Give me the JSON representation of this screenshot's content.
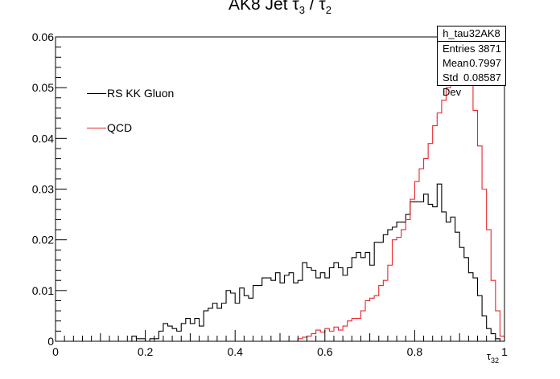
{
  "title": {
    "main": "AK8 Jet τ",
    "sub1": "3",
    "sep": " / τ",
    "sub2": "2"
  },
  "stats_box": {
    "name": "h_tau32AK8",
    "rows": [
      {
        "label": "Entries",
        "value": "3871"
      },
      {
        "label": "Mean",
        "value": "0.7997"
      },
      {
        "label": "Std Dev",
        "value": "0.08587"
      }
    ]
  },
  "colors": {
    "signal": "#000000",
    "background": "#e8262b"
  },
  "chart_data": {
    "type": "line",
    "xlabel": "τ32",
    "xlim": [
      0,
      1
    ],
    "ylim": [
      0,
      0.06
    ],
    "xticks": [
      "0",
      "0.2",
      "0.4",
      "0.6",
      "0.8",
      "1"
    ],
    "yticks": [
      "0",
      "0.01",
      "0.02",
      "0.03",
      "0.04",
      "0.05",
      "0.06"
    ],
    "bins": 100,
    "legend_position": "top-left",
    "series": [
      {
        "name": "RS KK Gluon",
        "values": [
          0,
          0,
          0,
          0,
          0,
          0,
          0,
          0,
          0,
          0,
          0,
          0,
          0,
          0,
          0,
          0,
          0,
          0.001,
          0.0005,
          0.0005,
          0,
          0.0005,
          0.0005,
          0.002,
          0.0035,
          0.003,
          0.0025,
          0.002,
          0.0035,
          0.0045,
          0.0035,
          0.0045,
          0.003,
          0.006,
          0.0065,
          0.0075,
          0.0065,
          0.0075,
          0.01,
          0.0095,
          0.0075,
          0.0105,
          0.009,
          0.0085,
          0.011,
          0.011,
          0.0125,
          0.0125,
          0.012,
          0.0135,
          0.0115,
          0.013,
          0.0135,
          0.0115,
          0.012,
          0.0155,
          0.0145,
          0.014,
          0.0125,
          0.0135,
          0.0125,
          0.0145,
          0.0155,
          0.0145,
          0.013,
          0.0145,
          0.0165,
          0.0175,
          0.0165,
          0.0175,
          0.015,
          0.0195,
          0.0195,
          0.021,
          0.022,
          0.0225,
          0.0235,
          0.0235,
          0.025,
          0.0275,
          0.0275,
          0.0275,
          0.029,
          0.027,
          0.0265,
          0.031,
          0.0255,
          0.0235,
          0.0245,
          0.0215,
          0.0185,
          0.0165,
          0.0135,
          0.0125,
          0.009,
          0.005,
          0.0025,
          0.0015,
          0.0005,
          0
        ]
      },
      {
        "name": "QCD",
        "values": [
          0,
          0,
          0,
          0,
          0,
          0,
          0,
          0,
          0,
          0,
          0,
          0,
          0,
          0,
          0,
          0,
          0,
          0,
          0,
          0,
          0,
          0,
          0,
          0,
          0,
          0,
          0,
          0,
          0,
          0,
          0,
          0,
          0,
          0,
          0,
          0,
          0,
          0,
          0,
          0,
          0,
          0,
          0,
          0,
          0,
          0,
          0,
          0,
          0,
          0,
          0,
          0,
          0,
          0,
          0.0005,
          0.0008,
          0.001,
          0.0015,
          0.0022,
          0.0018,
          0.0025,
          0.002,
          0.0028,
          0.0022,
          0.003,
          0.004,
          0.0045,
          0.0045,
          0.006,
          0.008,
          0.0085,
          0.009,
          0.011,
          0.012,
          0.015,
          0.02,
          0.0205,
          0.022,
          0.024,
          0.028,
          0.0315,
          0.034,
          0.036,
          0.039,
          0.0425,
          0.045,
          0.0475,
          0.05,
          0.053,
          0.0575,
          0.0555,
          0.053,
          0.051,
          0.0455,
          0.0385,
          0.03,
          0.022,
          0.012,
          0.006,
          0.001
        ]
      }
    ]
  }
}
